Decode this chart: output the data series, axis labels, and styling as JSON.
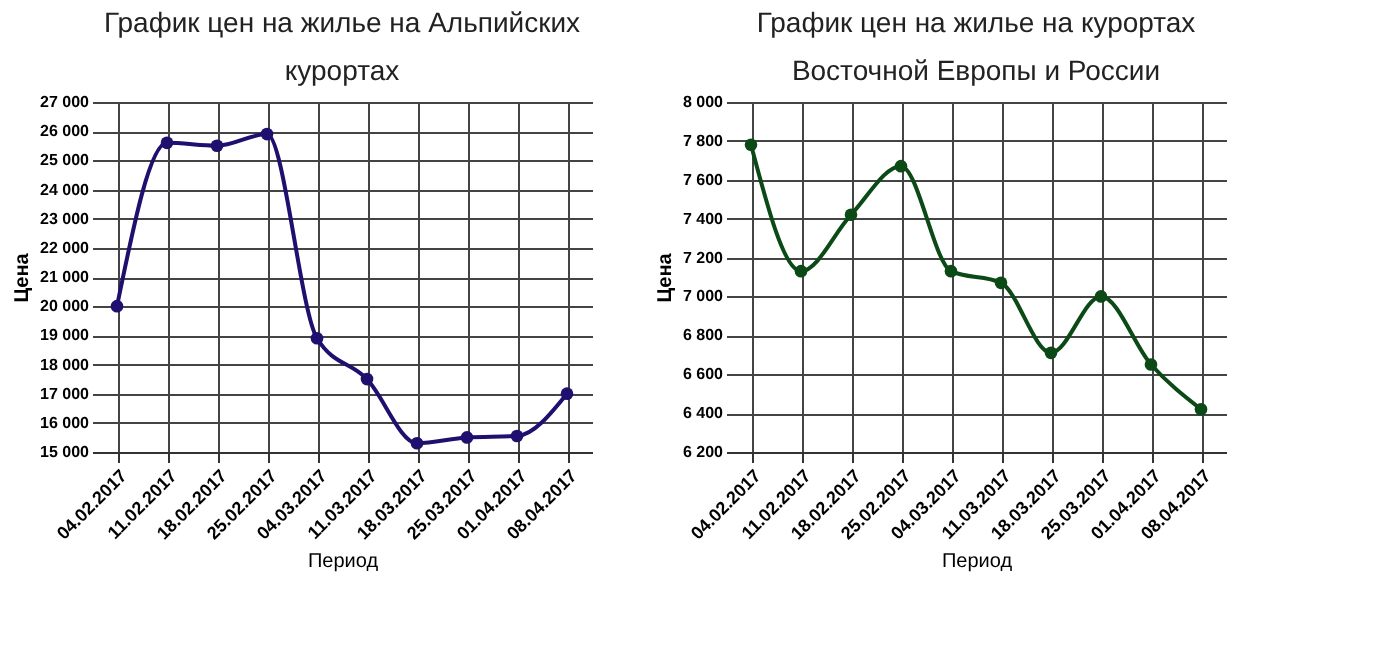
{
  "chart_data": [
    {
      "type": "line",
      "title": "График цен на жилье на Альпийских курортах",
      "xlabel": "Период",
      "ylabel": "Цена",
      "categories": [
        "04.02.2017",
        "11.02.2017",
        "18.02.2017",
        "25.02.2017",
        "04.03.2017",
        "11.03.2017",
        "18.03.2017",
        "25.03.2017",
        "01.04.2017",
        "08.04.2017"
      ],
      "series": [
        {
          "color": "#1f0f6e",
          "values": [
            20000,
            25600,
            25500,
            25900,
            18900,
            17500,
            15300,
            15500,
            15550,
            17000
          ]
        }
      ],
      "ylim": [
        15000,
        27000
      ],
      "yticks": [
        15000,
        16000,
        17000,
        18000,
        19000,
        20000,
        21000,
        22000,
        23000,
        24000,
        25000,
        26000,
        27000
      ],
      "grid": true,
      "marker": "circle",
      "line_style": "solid"
    },
    {
      "type": "line",
      "title": "График цен на жилье на курортах Восточной Европы и России",
      "xlabel": "Период",
      "ylabel": "Цена",
      "categories": [
        "04.02.2017",
        "11.02.2017",
        "18.02.2017",
        "25.02.2017",
        "04.03.2017",
        "11.03.2017",
        "18.03.2017",
        "25.03.2017",
        "01.04.2017",
        "08.04.2017"
      ],
      "series": [
        {
          "color": "#0b4a16",
          "values": [
            7780,
            7130,
            7420,
            7670,
            7130,
            7070,
            6710,
            7000,
            6650,
            6420
          ]
        }
      ],
      "ylim": [
        6200,
        8000
      ],
      "yticks": [
        6200,
        6400,
        6600,
        6800,
        7000,
        7200,
        7400,
        7600,
        7800,
        8000
      ],
      "grid": true,
      "marker": "circle",
      "line_style": "solid"
    }
  ]
}
